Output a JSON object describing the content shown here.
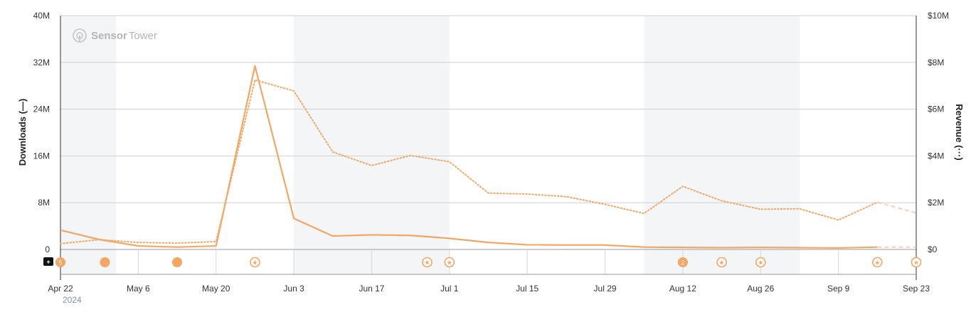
{
  "logo": {
    "brand_bold": "Sensor",
    "brand_light": "Tower"
  },
  "chart_data": {
    "type": "line",
    "x": [
      "Apr 22",
      "Apr 29",
      "May 6",
      "May 13",
      "May 20",
      "May 27",
      "Jun 3",
      "Jun 10",
      "Jun 17",
      "Jun 24",
      "Jul 1",
      "Jul 8",
      "Jul 15",
      "Jul 22",
      "Jul 29",
      "Aug 5",
      "Aug 12",
      "Aug 19",
      "Aug 26",
      "Sep 2",
      "Sep 9",
      "Sep 16",
      "Sep 23"
    ],
    "x_tick_labels": [
      "Apr 22",
      "May 6",
      "May 20",
      "Jun 3",
      "Jun 17",
      "Jul 1",
      "Jul 15",
      "Jul 29",
      "Aug 12",
      "Aug 26",
      "Sep 9",
      "Sep 23"
    ],
    "year_label": "2024",
    "y_left": {
      "label": "Downloads (—)",
      "ticks": [
        "0",
        "8M",
        "16M",
        "24M",
        "32M",
        "40M"
      ],
      "range": [
        0,
        40000000
      ]
    },
    "y_right": {
      "label": "Revenue (···)",
      "ticks": [
        "$0",
        "$2M",
        "$4M",
        "$6M",
        "$8M",
        "$10M"
      ],
      "range": [
        0,
        10000000
      ]
    },
    "series": [
      {
        "name": "Downloads",
        "axis": "left",
        "style": "solid",
        "values": [
          3300000,
          1700000,
          600000,
          400000,
          600000,
          31400000,
          5300000,
          2300000,
          2500000,
          2400000,
          1900000,
          1200000,
          800000,
          750000,
          750000,
          400000,
          350000,
          300000,
          350000,
          300000,
          250000,
          400000,
          400000
        ],
        "projected_from_index": 21
      },
      {
        "name": "Revenue",
        "axis": "right",
        "style": "dotted",
        "values": [
          250000,
          420000,
          300000,
          270000,
          340000,
          7250000,
          6780000,
          4170000,
          3590000,
          4020000,
          3750000,
          2410000,
          2370000,
          2260000,
          1930000,
          1540000,
          2700000,
          2080000,
          1720000,
          1740000,
          1260000,
          2020000,
          1560000
        ],
        "projected_from_index": 21
      }
    ],
    "shaded_ranges": [
      [
        "Apr 22",
        "May 2"
      ],
      [
        "Jun 3",
        "Jul 1"
      ],
      [
        "Aug 5",
        "Sep 2"
      ]
    ],
    "grid": true,
    "line_color": "#f5a662",
    "shade_color": "#f4f5f7",
    "events": [
      {
        "x": "Apr 22",
        "kind": "badge",
        "label": "5"
      },
      {
        "x": "Apr 30",
        "kind": "dot"
      },
      {
        "x": "May 13",
        "kind": "dot"
      },
      {
        "x": "May 27",
        "kind": "star"
      },
      {
        "x": "Jun 27",
        "kind": "star"
      },
      {
        "x": "Jul 1",
        "kind": "star"
      },
      {
        "x": "Aug 12",
        "kind": "badge",
        "label": "2"
      },
      {
        "x": "Aug 19",
        "kind": "star"
      },
      {
        "x": "Aug 26",
        "kind": "star"
      },
      {
        "x": "Sep 16",
        "kind": "star"
      },
      {
        "x": "Sep 23",
        "kind": "star"
      }
    ]
  }
}
